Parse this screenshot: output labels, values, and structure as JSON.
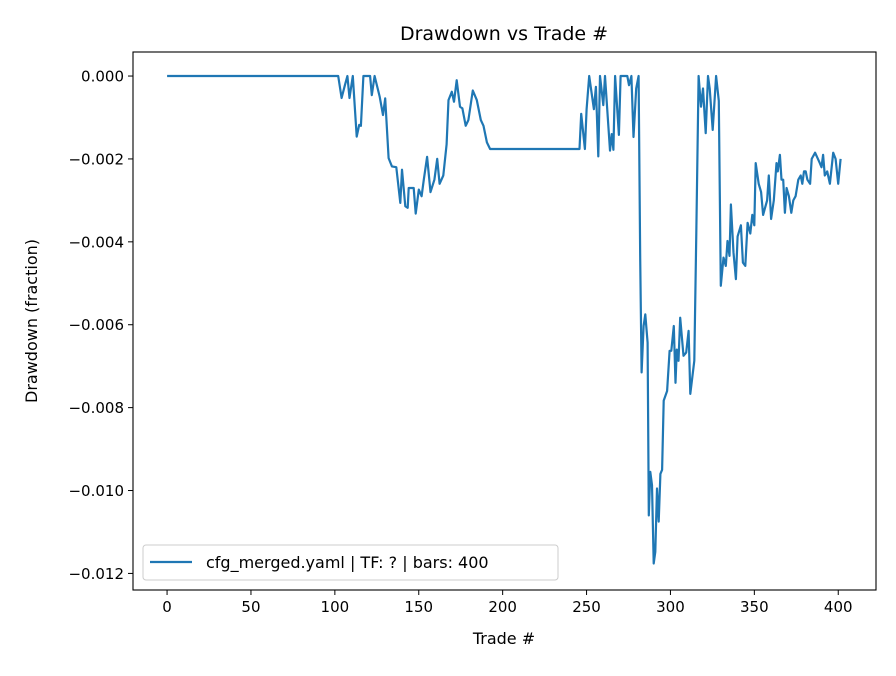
{
  "chart_data": {
    "type": "line",
    "title": "Drawdown vs Trade #",
    "xlabel": "Trade #",
    "ylabel": "Drawdown (fraction)",
    "xlim": [
      -20.3,
      422.5
    ],
    "ylim": [
      -0.0124,
      0.00058
    ],
    "xticks": [
      0,
      50,
      100,
      150,
      200,
      250,
      300,
      350,
      400
    ],
    "xtick_labels": [
      "0",
      "50",
      "100",
      "150",
      "200",
      "250",
      "300",
      "350",
      "400"
    ],
    "yticks": [
      0,
      -0.002,
      -0.004,
      -0.006,
      -0.008,
      -0.01,
      -0.012
    ],
    "ytick_labels": [
      "0.000",
      "−0.002",
      "−0.004",
      "−0.006",
      "−0.008",
      "−0.010",
      "−0.012"
    ],
    "grid": false,
    "legend_position": "lower-left",
    "series": [
      {
        "name": "cfg_merged.yaml | TF: ? | bars: 400",
        "color": "#1f77b4",
        "x": [
          0,
          102,
          104,
          106,
          107.5,
          108.7,
          110.7,
          113,
          114.5,
          115.5,
          117,
          121,
          122,
          123.7,
          126.7,
          128.7,
          130,
          132,
          134,
          136.6,
          139,
          140,
          142,
          143.4,
          144,
          147,
          148.2,
          150,
          151.7,
          153,
          155,
          157,
          159.3,
          161,
          162.4,
          164.6,
          166.6,
          167.7,
          169.7,
          171,
          172.6,
          174.6,
          176,
          178,
          179.6,
          182.2,
          184.6,
          187,
          188.6,
          190.6,
          192.5,
          245.8,
          246.8,
          249,
          250,
          251.6,
          254.4,
          255.6,
          257,
          258,
          260,
          261,
          264,
          265,
          266,
          267,
          269.3,
          270.3,
          274.3,
          275.3,
          276.7,
          278,
          279.6,
          281,
          282,
          282.8,
          284,
          285,
          286.4,
          287.1,
          288,
          289,
          290,
          291,
          292,
          293,
          294,
          295,
          296,
          298,
          299.5,
          300.5,
          302,
          303,
          303.8,
          304.8,
          305.8,
          307.8,
          309.4,
          310.8,
          311.8,
          314.2,
          315.4,
          316.8,
          318.2,
          319.4,
          321,
          322.4,
          323.4,
          325.2,
          327.2,
          328.8,
          330,
          331.6,
          333,
          334,
          335.2,
          336,
          337.6,
          339,
          340,
          342,
          343.2,
          344.6,
          346,
          347.6,
          348.8,
          350,
          350.8,
          352.6,
          354,
          355.2,
          357.6,
          358.6,
          360,
          361.6,
          363.2,
          364,
          365.2,
          366.2,
          367.2,
          368.2,
          369.2,
          370.6,
          372,
          373.2,
          374.6,
          376.2,
          377.6,
          378.6,
          379.6,
          380.6,
          381.6,
          383.2,
          384.2,
          386.2,
          389,
          390,
          391,
          392,
          393.4,
          395,
          397,
          398.4,
          400,
          401.4
        ],
        "y": [
          0,
          0,
          -0.00053,
          -0.00022,
          0,
          -0.00053,
          0,
          -0.00146,
          -0.00118,
          -0.0012,
          0,
          0,
          -0.00046,
          0,
          -0.0005,
          -0.00094,
          -0.00054,
          -0.00198,
          -0.00218,
          -0.0022,
          -0.00306,
          -0.00226,
          -0.00314,
          -0.00318,
          -0.0027,
          -0.0027,
          -0.00332,
          -0.00274,
          -0.0029,
          -0.0025,
          -0.00195,
          -0.0028,
          -0.0025,
          -0.002,
          -0.0026,
          -0.0024,
          -0.00165,
          -0.00058,
          -0.00038,
          -0.00062,
          -0.0001,
          -0.00074,
          -0.00078,
          -0.0012,
          -0.00106,
          -0.00035,
          -0.00058,
          -0.00106,
          -0.0012,
          -0.0016,
          -0.00176,
          -0.00176,
          -0.00091,
          -0.00176,
          -0.0008,
          0,
          -0.0008,
          -0.00026,
          -0.00194,
          0,
          -0.0007,
          0,
          -0.0018,
          -0.0014,
          -0.00178,
          0,
          -0.00142,
          0,
          0,
          -0.00022,
          0,
          -0.00147,
          -0.0003,
          0,
          -0.0044,
          -0.00715,
          -0.00603,
          -0.00575,
          -0.00643,
          -0.0106,
          -0.00955,
          -0.00987,
          -0.01176,
          -0.01148,
          -0.00995,
          -0.01075,
          -0.0096,
          -0.0095,
          -0.00783,
          -0.0076,
          -0.00663,
          -0.00663,
          -0.00603,
          -0.0074,
          -0.0066,
          -0.00687,
          -0.00583,
          -0.00675,
          -0.00667,
          -0.00615,
          -0.00767,
          -0.00687,
          -0.0038,
          0,
          -0.00074,
          -0.0003,
          -0.00138,
          0,
          -0.0003,
          -0.0013,
          0,
          -0.0006,
          -0.00506,
          -0.00438,
          -0.00458,
          -0.00398,
          -0.00434,
          -0.0031,
          -0.00426,
          -0.0049,
          -0.00387,
          -0.0036,
          -0.0045,
          -0.00458,
          -0.00354,
          -0.0038,
          -0.00335,
          -0.0036,
          -0.0021,
          -0.0026,
          -0.0028,
          -0.00335,
          -0.003,
          -0.0024,
          -0.00345,
          -0.003,
          -0.0021,
          -0.0023,
          -0.0019,
          -0.0025,
          -0.0025,
          -0.0033,
          -0.0027,
          -0.0029,
          -0.0033,
          -0.003,
          -0.0029,
          -0.0025,
          -0.0024,
          -0.0026,
          -0.0023,
          -0.0023,
          -0.0025,
          -0.0026,
          -0.002,
          -0.00185,
          -0.0021,
          -0.0022,
          -0.0019,
          -0.0024,
          -0.0023,
          -0.0026,
          -0.00185,
          -0.002,
          -0.0026,
          -0.002
        ]
      }
    ]
  }
}
